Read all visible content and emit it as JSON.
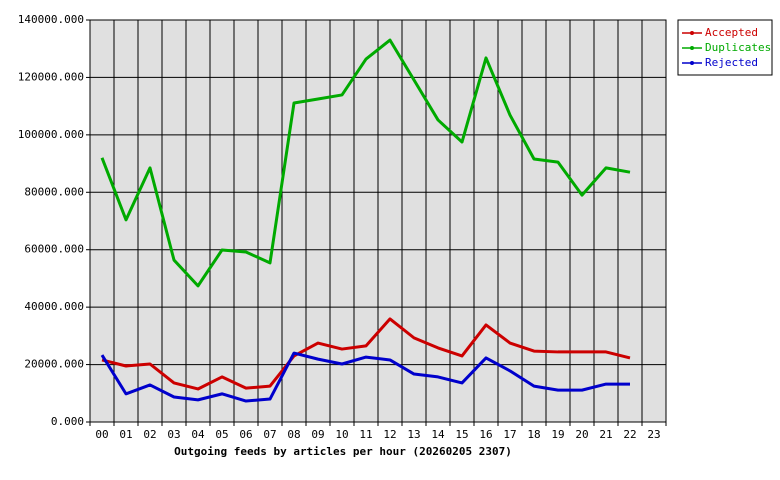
{
  "chart_data": {
    "type": "line",
    "xlabel": "Outgoing feeds by articles per hour (20260205 2307)",
    "categories": [
      "00",
      "01",
      "02",
      "03",
      "04",
      "05",
      "06",
      "07",
      "08",
      "09",
      "10",
      "11",
      "12",
      "13",
      "14",
      "15",
      "16",
      "17",
      "18",
      "19",
      "20",
      "21",
      "22",
      "23"
    ],
    "series": [
      {
        "name": "Accepted",
        "color": "#cc0000",
        "values": [
          21600,
          19500,
          20200,
          13600,
          11500,
          15700,
          11800,
          12500,
          23000,
          27500,
          25400,
          26500,
          35900,
          29300,
          25800,
          23000,
          33800,
          27500,
          24700,
          24400,
          24400,
          24400,
          22300,
          null
        ]
      },
      {
        "name": "Duplicates",
        "color": "#00aa00",
        "values": [
          92000,
          70400,
          88500,
          56400,
          47400,
          59900,
          59200,
          55400,
          111100,
          112500,
          113900,
          126400,
          133000,
          119100,
          105200,
          97500,
          126800,
          106900,
          91600,
          90500,
          79000,
          88500,
          87000,
          null
        ]
      },
      {
        "name": "Rejected",
        "color": "#0000cc",
        "values": [
          23300,
          9800,
          12900,
          8700,
          7700,
          9800,
          7300,
          8000,
          24000,
          21900,
          20200,
          22600,
          21600,
          16700,
          15700,
          13600,
          22300,
          17800,
          12500,
          11100,
          11100,
          13200,
          13200,
          null
        ]
      }
    ],
    "ylim": [
      0,
      140000
    ],
    "yticks": [
      {
        "value": 0,
        "label": "0.000"
      },
      {
        "value": 20000,
        "label": "20000.000"
      },
      {
        "value": 40000,
        "label": "40000.000"
      },
      {
        "value": 60000,
        "label": "60000.000"
      },
      {
        "value": 80000,
        "label": "80000.000"
      },
      {
        "value": 100000,
        "label": "100000.000"
      },
      {
        "value": 120000,
        "label": "120000.000"
      },
      {
        "value": 140000,
        "label": "140000.000"
      }
    ],
    "grid": true,
    "legend": "top-right"
  }
}
